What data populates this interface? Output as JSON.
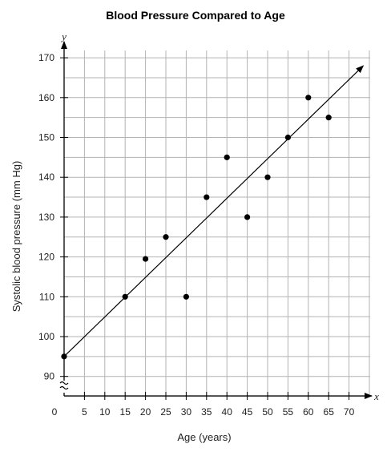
{
  "chart_data": {
    "type": "scatter",
    "title": "Blood Pressure Compared to Age",
    "xlabel": "Age (years)",
    "ylabel": "Systolic blood pressure (mm Hg)",
    "x_axis_letter": "x",
    "y_axis_letter": "y",
    "xlim": [
      0,
      70
    ],
    "ylim": [
      90,
      170
    ],
    "x_ticks": [
      0,
      5,
      10,
      15,
      20,
      25,
      30,
      35,
      40,
      45,
      50,
      55,
      60,
      65,
      70
    ],
    "x_tick_labels": [
      "0",
      "5",
      "10",
      "15",
      "20",
      "25",
      "30",
      "35",
      "40",
      "45",
      "50",
      "55",
      "60",
      "65",
      "70"
    ],
    "y_ticks": [
      90,
      100,
      110,
      120,
      130,
      140,
      150,
      160,
      170
    ],
    "y_tick_labels": [
      "90",
      "100",
      "110",
      "120",
      "130",
      "140",
      "150",
      "160",
      "170"
    ],
    "y_axis_break": true,
    "grid": true,
    "points": [
      {
        "x": 0,
        "y": 95
      },
      {
        "x": 15,
        "y": 110
      },
      {
        "x": 20,
        "y": 119.5
      },
      {
        "x": 25,
        "y": 125
      },
      {
        "x": 30,
        "y": 110
      },
      {
        "x": 35,
        "y": 135
      },
      {
        "x": 40,
        "y": 145
      },
      {
        "x": 45,
        "y": 130
      },
      {
        "x": 50,
        "y": 140
      },
      {
        "x": 55,
        "y": 150
      },
      {
        "x": 60,
        "y": 160
      },
      {
        "x": 65,
        "y": 155
      }
    ],
    "trend_line": {
      "x": [
        0,
        73.5
      ],
      "y": [
        95,
        168
      ]
    },
    "colors": {
      "grid": "#b3b3b3",
      "axis": "#000000",
      "points": "#000000",
      "line": "#000000"
    }
  }
}
